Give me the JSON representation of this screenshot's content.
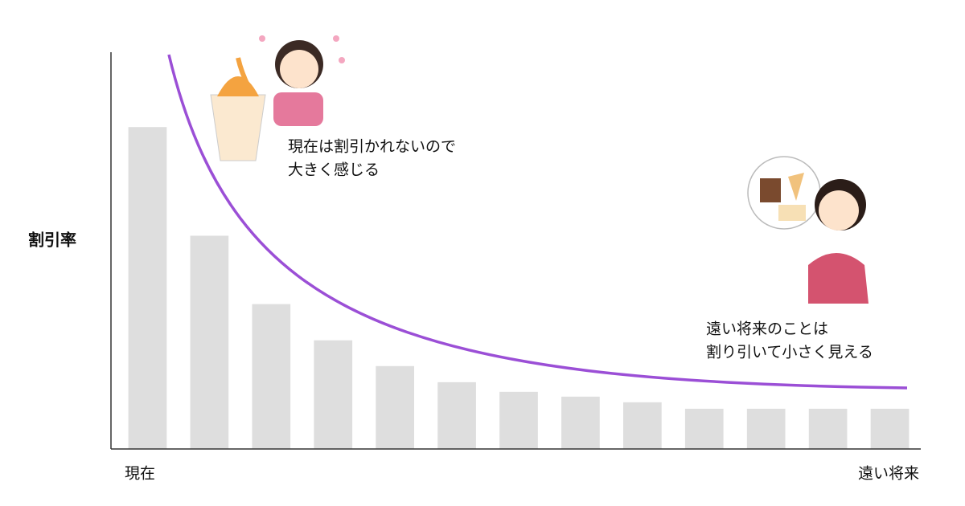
{
  "chart_data": {
    "type": "bar",
    "ylabel": "割引率",
    "categories": [
      "現在",
      null,
      null,
      null,
      null,
      null,
      null,
      null,
      null,
      null,
      null,
      null,
      "遠い将来"
    ],
    "values": [
      400,
      265,
      180,
      135,
      103,
      83,
      71,
      65,
      58,
      50,
      50,
      50,
      50
    ],
    "color": "#dedede",
    "ylim": [
      0,
      493
    ],
    "curve_color": "#9b4fd6",
    "annotations": [
      {
        "lines": [
          "現在は割引かれないので",
          "大きく感じる"
        ]
      },
      {
        "lines": [
          "遠い将来のことは",
          "割り引いて小さく見える"
        ]
      }
    ]
  }
}
